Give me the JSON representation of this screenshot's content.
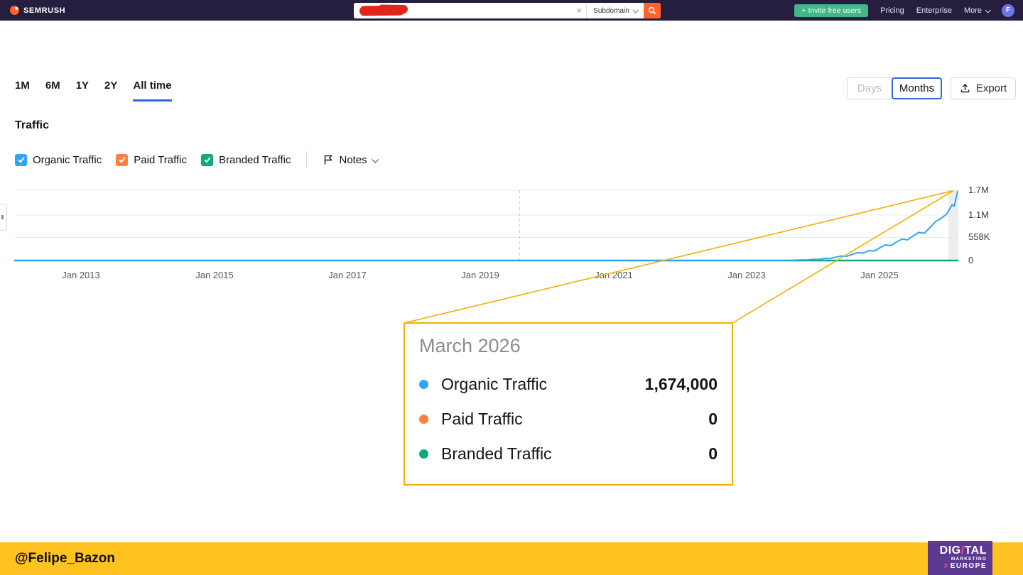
{
  "header": {
    "brand": "SEMRUSH",
    "search": {
      "clear_label": "×",
      "scope_label": "Subdomain"
    },
    "invite_label": "+ Invite free users",
    "nav": [
      "Pricing",
      "Enterprise",
      "More"
    ],
    "avatar_initial": "F"
  },
  "toolbar": {
    "ranges": [
      {
        "label": "1M",
        "active": false
      },
      {
        "label": "6M",
        "active": false
      },
      {
        "label": "1Y",
        "active": false
      },
      {
        "label": "2Y",
        "active": false
      },
      {
        "label": "All time",
        "active": true
      }
    ],
    "days_label": "Days",
    "months_label": "Months",
    "export_label": "Export"
  },
  "traffic": {
    "title": "Traffic",
    "legend": [
      {
        "label": "Organic Traffic",
        "color": "#31a3f5"
      },
      {
        "label": "Paid Traffic",
        "color": "#ff8041"
      },
      {
        "label": "Branded Traffic",
        "color": "#0ea981"
      }
    ],
    "notes_label": "Notes"
  },
  "chart_data": {
    "type": "line",
    "title": "Traffic (All time, monthly)",
    "x_axis": {
      "start": "Jan 2012",
      "end": "Mar 2026",
      "ticks": [
        "Jan 2013",
        "Jan 2015",
        "Jan 2017",
        "Jan 2019",
        "Jan 2021",
        "Jan 2023",
        "Jan 2025"
      ]
    },
    "y_axis": {
      "max": 1700000,
      "ticks": [
        {
          "label": "1.7M",
          "value": 1700000
        },
        {
          "label": "1.1M",
          "value": 1100000
        },
        {
          "label": "558K",
          "value": 558000
        },
        {
          "label": "0",
          "value": 0
        }
      ]
    },
    "note_line_month": 91,
    "series": [
      {
        "name": "Paid Traffic",
        "color": "#ff8041",
        "width": 2,
        "points": [
          [
            0,
            0
          ],
          [
            170,
            0
          ]
        ]
      },
      {
        "name": "Branded Traffic",
        "color": "#0ea981",
        "width": 2.5,
        "points": [
          [
            0,
            0
          ],
          [
            170,
            0
          ]
        ]
      },
      {
        "name": "Organic Traffic",
        "color": "#31a3f5",
        "width": 2,
        "points": [
          [
            0,
            0
          ],
          [
            138,
            0
          ],
          [
            140,
            6000
          ],
          [
            142,
            15000
          ],
          [
            143,
            12000
          ],
          [
            144,
            30000
          ],
          [
            145,
            26000
          ],
          [
            146,
            52000
          ],
          [
            147,
            48000
          ],
          [
            148,
            80000
          ],
          [
            149,
            110000
          ],
          [
            150,
            100000
          ],
          [
            151,
            150000
          ],
          [
            152,
            190000
          ],
          [
            153,
            180000
          ],
          [
            154,
            240000
          ],
          [
            155,
            230000
          ],
          [
            156,
            310000
          ],
          [
            157,
            380000
          ],
          [
            158,
            360000
          ],
          [
            159,
            450000
          ],
          [
            160,
            520000
          ],
          [
            161,
            500000
          ],
          [
            162,
            600000
          ],
          [
            163,
            680000
          ],
          [
            164,
            660000
          ],
          [
            165,
            800000
          ],
          [
            166,
            940000
          ],
          [
            167,
            1020000
          ],
          [
            168,
            1120000
          ],
          [
            169,
            1350000
          ],
          [
            169.4,
            1320000
          ],
          [
            170,
            1674000
          ]
        ]
      }
    ],
    "hover": {
      "month": 170,
      "label": "March 2026",
      "organic": 1674000,
      "paid": 0,
      "branded": 0
    }
  },
  "tooltip": {
    "title": "March 2026",
    "rows": [
      {
        "label": "Organic Traffic",
        "value": "1,674,000",
        "color": "#31a3f5"
      },
      {
        "label": "Paid Traffic",
        "value": "0",
        "color": "#ff8041"
      },
      {
        "label": "Branded Traffic",
        "value": "0",
        "color": "#0ea981"
      }
    ],
    "accent": "#f2af00"
  },
  "footer": {
    "handle": "@Felipe_Bazon",
    "logo": {
      "dig": "DIG",
      "slash": "/",
      "tal": "TAL",
      "marketing": "MARKETING",
      "hash": "#",
      "europe": "EUROPE"
    }
  }
}
